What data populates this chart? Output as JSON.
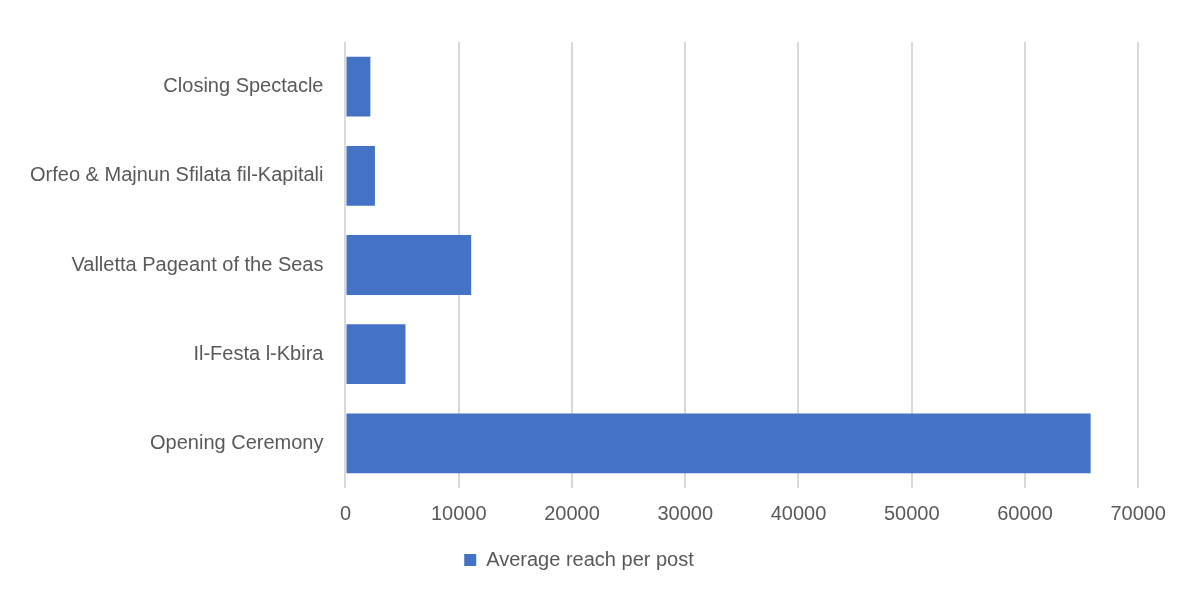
{
  "chart_data": {
    "type": "bar",
    "orientation": "horizontal",
    "categories": [
      "Closing Spectacle",
      "Orfeo & Majnun Sfilata fil-Kapitali",
      "Valletta Pageant of the Seas",
      "Il-Festa l-Kbira",
      "Opening Ceremony"
    ],
    "series": [
      {
        "name": "Average reach per post",
        "color": "#4472c4",
        "values": [
          2200,
          2600,
          11100,
          5300,
          65800
        ]
      }
    ],
    "xlim": [
      0,
      70000
    ],
    "xticks": [
      0,
      10000,
      20000,
      30000,
      40000,
      50000,
      60000,
      70000
    ],
    "grid": "x",
    "legend": "bottom"
  }
}
